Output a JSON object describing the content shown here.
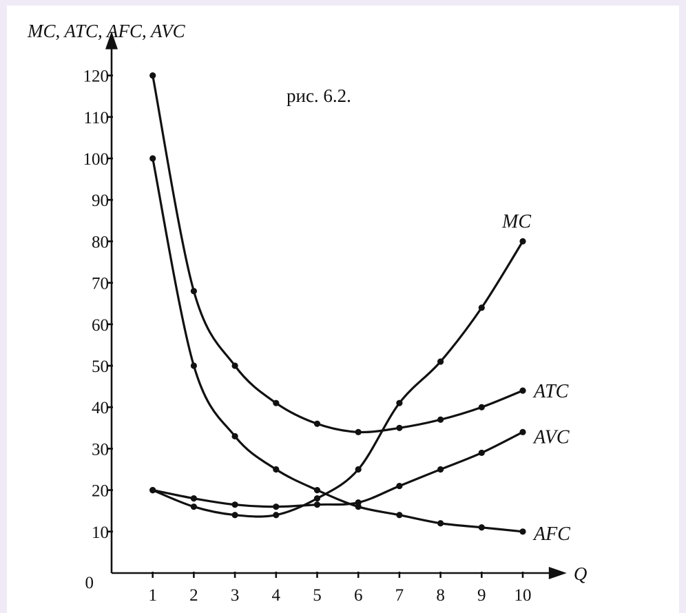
{
  "chart_data": {
    "type": "line",
    "figure_label": "рис. 6.2.",
    "ylabel": "MC, ATC, AFC, AVC",
    "xlabel": "Q",
    "origin_label": "0",
    "x": [
      1,
      2,
      3,
      4,
      5,
      6,
      7,
      8,
      9,
      10
    ],
    "xticks": [
      "1",
      "2",
      "3",
      "4",
      "5",
      "6",
      "7",
      "8",
      "9",
      "10"
    ],
    "yticks": [
      "10",
      "20",
      "30",
      "40",
      "50",
      "60",
      "70",
      "80",
      "90",
      "100",
      "110",
      "120"
    ],
    "xlim": [
      0,
      10.6
    ],
    "ylim": [
      0,
      125
    ],
    "grid": false,
    "legend": "labels at curve ends",
    "series": [
      {
        "name": "ATC",
        "values": [
          120,
          68,
          50,
          41,
          36,
          34,
          35,
          37,
          40,
          44
        ]
      },
      {
        "name": "AFC",
        "values": [
          100,
          50,
          33,
          25,
          20,
          16,
          14,
          12,
          11,
          10
        ]
      },
      {
        "name": "MC",
        "values": [
          20,
          16,
          14,
          14,
          18,
          25,
          41,
          51,
          64,
          80
        ]
      },
      {
        "name": "AVC",
        "values": [
          20,
          18,
          16.5,
          16,
          16.5,
          17,
          21,
          25,
          29,
          34
        ]
      }
    ]
  }
}
